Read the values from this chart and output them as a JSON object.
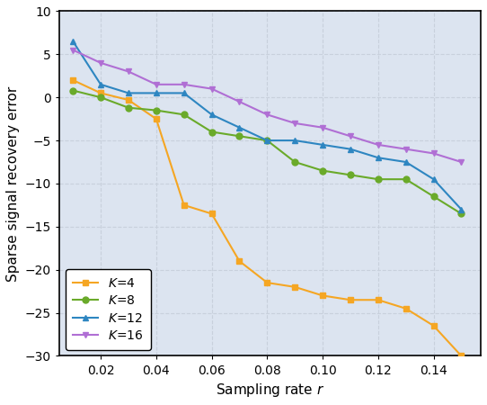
{
  "x": [
    0.01,
    0.02,
    0.03,
    0.04,
    0.05,
    0.06,
    0.07,
    0.08,
    0.09,
    0.1,
    0.11,
    0.12,
    0.13,
    0.14,
    0.15
  ],
  "K4": [
    2.0,
    0.5,
    -0.3,
    -2.5,
    -12.5,
    -13.5,
    -19.0,
    -21.5,
    -22.0,
    -23.0,
    -23.5,
    -23.5,
    -24.5,
    -26.5,
    -30.0
  ],
  "K8": [
    0.8,
    0.0,
    -1.2,
    -1.5,
    -2.0,
    -4.0,
    -4.5,
    -5.0,
    -7.5,
    -8.5,
    -9.0,
    -9.5,
    -9.5,
    -11.5,
    -13.5
  ],
  "K12": [
    6.5,
    1.5,
    0.5,
    0.5,
    0.5,
    -2.0,
    -3.5,
    -5.0,
    -5.0,
    -5.5,
    -6.0,
    -7.0,
    -7.5,
    -9.5,
    -13.0
  ],
  "K16": [
    5.5,
    4.0,
    3.0,
    1.5,
    1.5,
    1.0,
    -0.5,
    -2.0,
    -3.0,
    -3.5,
    -4.5,
    -5.5,
    -6.0,
    -6.5,
    -7.5
  ],
  "colors": {
    "K4": "#f5a623",
    "K8": "#6aaa2a",
    "K12": "#2e86c1",
    "K16": "#b06fd4"
  },
  "xlabel": "Sampling rate $r$",
  "ylabel": "Sparse signal recovery error",
  "ylim": [
    -30,
    10
  ],
  "yticks": [
    -30,
    -25,
    -20,
    -15,
    -10,
    -5,
    0,
    5,
    10
  ],
  "xticks": [
    0.02,
    0.04,
    0.06,
    0.08,
    0.1,
    0.12,
    0.14
  ],
  "grid_color": "#c8d0dc",
  "plot_bg": "#dce4f0",
  "fig_bg": "#ffffff"
}
